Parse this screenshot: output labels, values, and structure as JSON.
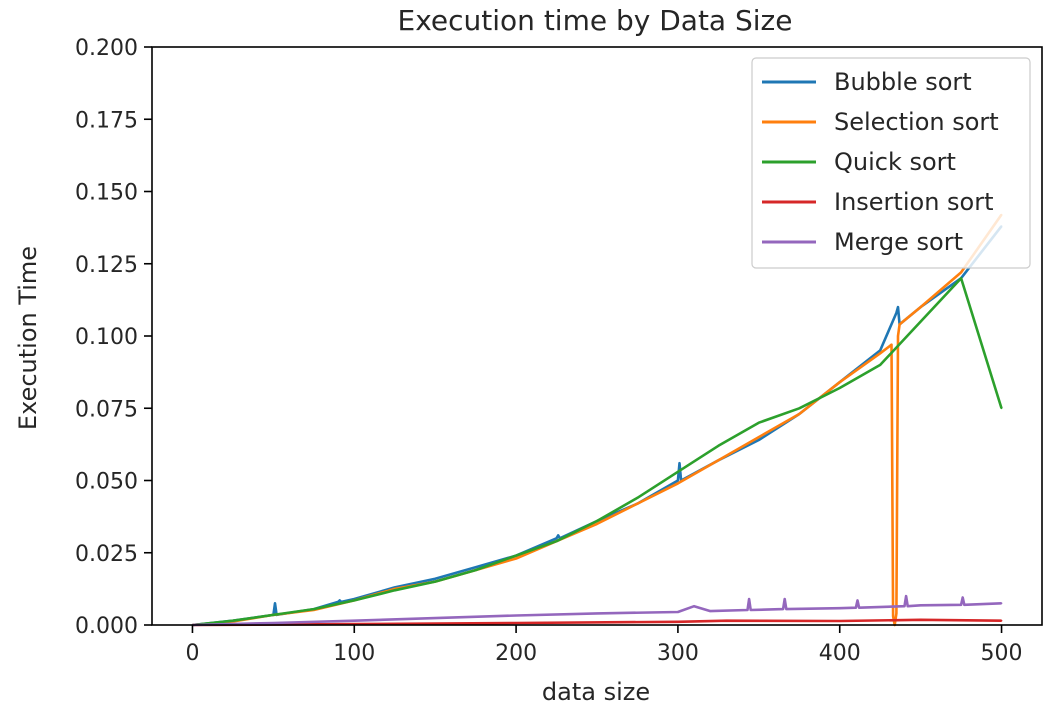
{
  "chart_data": {
    "type": "line",
    "title": "Execution time by Data Size",
    "xlabel": "data size",
    "ylabel": "Execution Time",
    "xlim": [
      -25,
      525
    ],
    "ylim": [
      0,
      0.2
    ],
    "x_ticks": [
      0,
      100,
      200,
      300,
      400,
      500
    ],
    "x_tick_labels": [
      "0",
      "100",
      "200",
      "300",
      "400",
      "500"
    ],
    "y_ticks": [
      0,
      0.025,
      0.05,
      0.075,
      0.1,
      0.125,
      0.15,
      0.175,
      0.2
    ],
    "y_tick_labels": [
      "0.000",
      "0.025",
      "0.050",
      "0.075",
      "0.100",
      "0.125",
      "0.150",
      "0.175",
      "0.200"
    ],
    "grid": false,
    "legend_position": "top-right",
    "series": [
      {
        "name": "Bubble sort",
        "color": "#1f77b4",
        "x": [
          0,
          25,
          50,
          51,
          52,
          75,
          90,
          91,
          92,
          100,
          125,
          150,
          175,
          200,
          225,
          226,
          227,
          250,
          275,
          300,
          301,
          302,
          325,
          350,
          375,
          400,
          425,
          435,
          436,
          437,
          450,
          475,
          500
        ],
        "y": [
          0.0,
          0.0015,
          0.0035,
          0.0075,
          0.0035,
          0.0055,
          0.008,
          0.0085,
          0.008,
          0.009,
          0.013,
          0.016,
          0.02,
          0.024,
          0.03,
          0.031,
          0.03,
          0.036,
          0.042,
          0.05,
          0.056,
          0.05,
          0.057,
          0.064,
          0.073,
          0.084,
          0.095,
          0.108,
          0.11,
          0.104,
          0.11,
          0.12,
          0.138
        ]
      },
      {
        "name": "Selection sort",
        "color": "#ff7f0e",
        "x": [
          0,
          25,
          50,
          75,
          100,
          125,
          150,
          175,
          200,
          225,
          250,
          275,
          300,
          325,
          350,
          375,
          400,
          425,
          432,
          433,
          434,
          435,
          436,
          437,
          450,
          475,
          500
        ],
        "y": [
          0.0,
          0.0012,
          0.0035,
          0.0052,
          0.0085,
          0.0125,
          0.015,
          0.019,
          0.023,
          0.029,
          0.035,
          0.042,
          0.049,
          0.057,
          0.065,
          0.073,
          0.084,
          0.094,
          0.097,
          0.003,
          0.0,
          0.004,
          0.1,
          0.104,
          0.11,
          0.122,
          0.142
        ]
      },
      {
        "name": "Quick sort",
        "color": "#2ca02c",
        "x": [
          0,
          25,
          50,
          75,
          100,
          125,
          150,
          175,
          200,
          225,
          250,
          275,
          300,
          325,
          350,
          375,
          400,
          425,
          450,
          475,
          500
        ],
        "y": [
          0.0,
          0.0015,
          0.0035,
          0.0055,
          0.0085,
          0.012,
          0.015,
          0.019,
          0.024,
          0.029,
          0.036,
          0.044,
          0.053,
          0.062,
          0.07,
          0.075,
          0.082,
          0.09,
          0.105,
          0.12,
          0.075
        ]
      },
      {
        "name": "Insertion sort",
        "color": "#d62728",
        "x": [
          0,
          100,
          200,
          300,
          330,
          400,
          450,
          500
        ],
        "y": [
          0.0,
          0.0003,
          0.0007,
          0.0011,
          0.0015,
          0.0014,
          0.0018,
          0.0015
        ]
      },
      {
        "name": "Merge sort",
        "color": "#9467bd",
        "x": [
          0,
          50,
          100,
          150,
          200,
          250,
          300,
          310,
          320,
          343,
          344,
          345,
          365,
          366,
          367,
          400,
          410,
          411,
          412,
          440,
          441,
          442,
          450,
          475,
          476,
          477,
          500
        ],
        "y": [
          0.0,
          0.0007,
          0.0015,
          0.0024,
          0.0033,
          0.004,
          0.0045,
          0.0065,
          0.0048,
          0.0052,
          0.009,
          0.0052,
          0.0055,
          0.009,
          0.0055,
          0.0058,
          0.006,
          0.0085,
          0.006,
          0.0065,
          0.01,
          0.0065,
          0.0068,
          0.007,
          0.0095,
          0.007,
          0.0075
        ]
      }
    ]
  }
}
